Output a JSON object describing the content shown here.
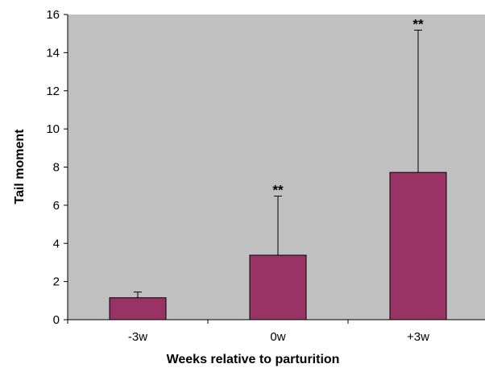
{
  "chart_data": {
    "type": "bar",
    "title": "",
    "xlabel": "Weeks relative to parturition",
    "ylabel": "Tail moment",
    "categories": [
      "-3w",
      "0w",
      "+3w"
    ],
    "values": [
      1.15,
      3.38,
      7.72
    ],
    "error_upper": [
      1.45,
      6.48,
      15.18
    ],
    "annotations": [
      "",
      "**",
      "**"
    ],
    "ylim": [
      0,
      16
    ],
    "yticks": [
      "0",
      "2",
      "4",
      "6",
      "8",
      "10",
      "12",
      "14",
      "16"
    ],
    "grid": false,
    "colors": {
      "bar": "#993366",
      "plot_background": "#c0c0c0",
      "bar_outline": "#000000"
    }
  }
}
